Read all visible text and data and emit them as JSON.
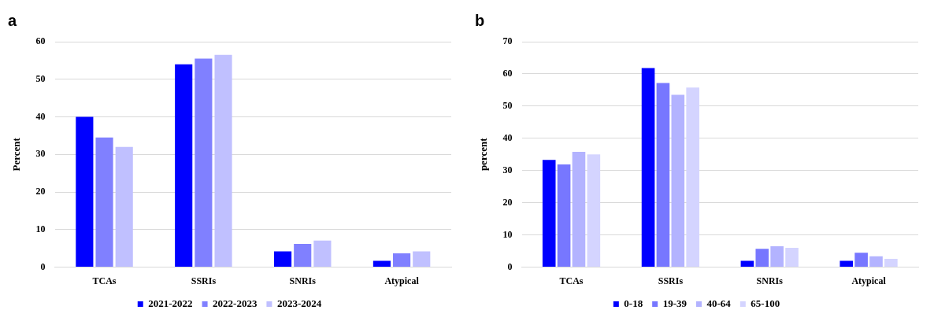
{
  "chart_data": [
    {
      "type": "bar",
      "title": "a",
      "ylabel": "Percent",
      "categories": [
        "TCAs",
        "SSRIs",
        "SNRIs",
        "Atypical"
      ],
      "series": [
        {
          "name": "2021-2022",
          "color": "#0000ff",
          "values": [
            40,
            54,
            4.2,
            1.7
          ]
        },
        {
          "name": "2022-2023",
          "color": "#8080ff",
          "values": [
            34.5,
            55.5,
            6.2,
            3.7
          ]
        },
        {
          "name": "2023-2024",
          "color": "#c0c0ff",
          "values": [
            32,
            56.5,
            7.1,
            4.2
          ]
        }
      ],
      "ylim": [
        0,
        60
      ],
      "yticks": [
        0,
        10,
        20,
        30,
        40,
        50,
        60
      ],
      "grid": "y",
      "legend": "bottom"
    },
    {
      "type": "bar",
      "title": "b",
      "ylabel": "percent",
      "categories": [
        "TCAs",
        "SSRIs",
        "SNRIs",
        "Atypical"
      ],
      "series": [
        {
          "name": "0-18",
          "color": "#0000ff",
          "values": [
            33.3,
            61.8,
            2,
            2
          ]
        },
        {
          "name": "19-39",
          "color": "#7777ff",
          "values": [
            31.9,
            57.2,
            5.7,
            4.5
          ]
        },
        {
          "name": "40-64",
          "color": "#b3b3ff",
          "values": [
            35.8,
            53.5,
            6.5,
            3.4
          ]
        },
        {
          "name": "65-100",
          "color": "#d4d4ff",
          "values": [
            35,
            55.8,
            6,
            2.6
          ]
        }
      ],
      "ylim": [
        0,
        70
      ],
      "yticks": [
        0,
        10,
        20,
        30,
        40,
        50,
        60,
        70
      ],
      "grid": "y",
      "legend": "bottom"
    }
  ]
}
